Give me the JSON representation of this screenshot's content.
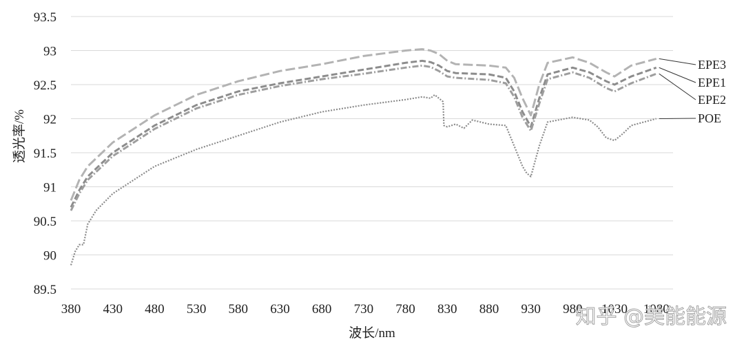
{
  "chart_data": {
    "type": "line",
    "title": "",
    "xlabel": "波长/nm",
    "ylabel": "透光率/%",
    "xlim": [
      380,
      1100
    ],
    "ylim": [
      89.5,
      93.5
    ],
    "x_ticks": [
      "380",
      "430",
      "480",
      "530",
      "580",
      "630",
      "680",
      "730",
      "780",
      "830",
      "880",
      "930",
      "980",
      "1030",
      "1080"
    ],
    "y_ticks": [
      "89.5",
      "90",
      "90.5",
      "91",
      "91.5",
      "92",
      "92.5",
      "93",
      "93.5"
    ],
    "grid": "horizontal",
    "legend_placement": "right, line-end labels",
    "series": [
      {
        "name": "EPE3",
        "color": "#b3b3b3",
        "dash": "long-dash",
        "x": [
          380,
          390,
          400,
          430,
          480,
          530,
          580,
          630,
          680,
          730,
          780,
          800,
          810,
          820,
          830,
          840,
          880,
          900,
          910,
          920,
          930,
          940,
          950,
          980,
          1000,
          1020,
          1030,
          1050,
          1080
        ],
        "y": [
          90.8,
          91.1,
          91.3,
          91.65,
          92.05,
          92.35,
          92.55,
          92.7,
          92.8,
          92.92,
          93.0,
          93.02,
          93.0,
          92.95,
          92.85,
          92.8,
          92.78,
          92.75,
          92.6,
          92.3,
          92.05,
          92.5,
          92.82,
          92.9,
          92.82,
          92.68,
          92.62,
          92.78,
          92.88
        ]
      },
      {
        "name": "EPE1",
        "color": "#8c8c8c",
        "dash": "dash",
        "x": [
          380,
          390,
          400,
          430,
          480,
          530,
          580,
          630,
          680,
          730,
          780,
          800,
          810,
          820,
          830,
          840,
          880,
          900,
          910,
          920,
          930,
          940,
          950,
          980,
          1000,
          1020,
          1030,
          1050,
          1080
        ],
        "y": [
          90.7,
          90.95,
          91.15,
          91.5,
          91.9,
          92.2,
          92.4,
          92.52,
          92.62,
          92.72,
          92.82,
          92.85,
          92.83,
          92.78,
          92.7,
          92.67,
          92.65,
          92.6,
          92.4,
          92.1,
          91.88,
          92.3,
          92.65,
          92.75,
          92.68,
          92.55,
          92.5,
          92.62,
          92.75
        ]
      },
      {
        "name": "EPE2",
        "color": "#9e9e9e",
        "dash": "dash-dot",
        "x": [
          380,
          390,
          400,
          430,
          480,
          530,
          580,
          630,
          680,
          730,
          780,
          800,
          810,
          820,
          830,
          840,
          880,
          900,
          910,
          920,
          930,
          940,
          950,
          980,
          1000,
          1020,
          1030,
          1050,
          1080
        ],
        "y": [
          90.65,
          90.9,
          91.1,
          91.45,
          91.85,
          92.15,
          92.35,
          92.48,
          92.58,
          92.66,
          92.75,
          92.78,
          92.76,
          92.7,
          92.62,
          92.6,
          92.57,
          92.52,
          92.32,
          92.02,
          91.82,
          92.22,
          92.58,
          92.68,
          92.6,
          92.45,
          92.4,
          92.52,
          92.66
        ]
      },
      {
        "name": "POE",
        "color": "#8a8a8a",
        "dash": "dot",
        "x": [
          380,
          385,
          390,
          395,
          400,
          405,
          410,
          430,
          480,
          530,
          580,
          630,
          680,
          730,
          780,
          800,
          810,
          815,
          820,
          825,
          826,
          830,
          840,
          850,
          860,
          880,
          900,
          910,
          920,
          925,
          930,
          940,
          950,
          980,
          1000,
          1010,
          1020,
          1030,
          1040,
          1050,
          1080
        ],
        "y": [
          89.85,
          90.05,
          90.15,
          90.15,
          90.45,
          90.55,
          90.65,
          90.9,
          91.3,
          91.55,
          91.75,
          91.95,
          92.1,
          92.2,
          92.28,
          92.32,
          92.3,
          92.35,
          92.3,
          92.25,
          91.9,
          91.88,
          91.92,
          91.86,
          91.98,
          91.92,
          91.9,
          91.6,
          91.3,
          91.2,
          91.15,
          91.6,
          91.95,
          92.02,
          91.98,
          91.88,
          91.72,
          91.68,
          91.78,
          91.9,
          92.0
        ]
      }
    ]
  },
  "watermark": "知乎 @美能能源"
}
